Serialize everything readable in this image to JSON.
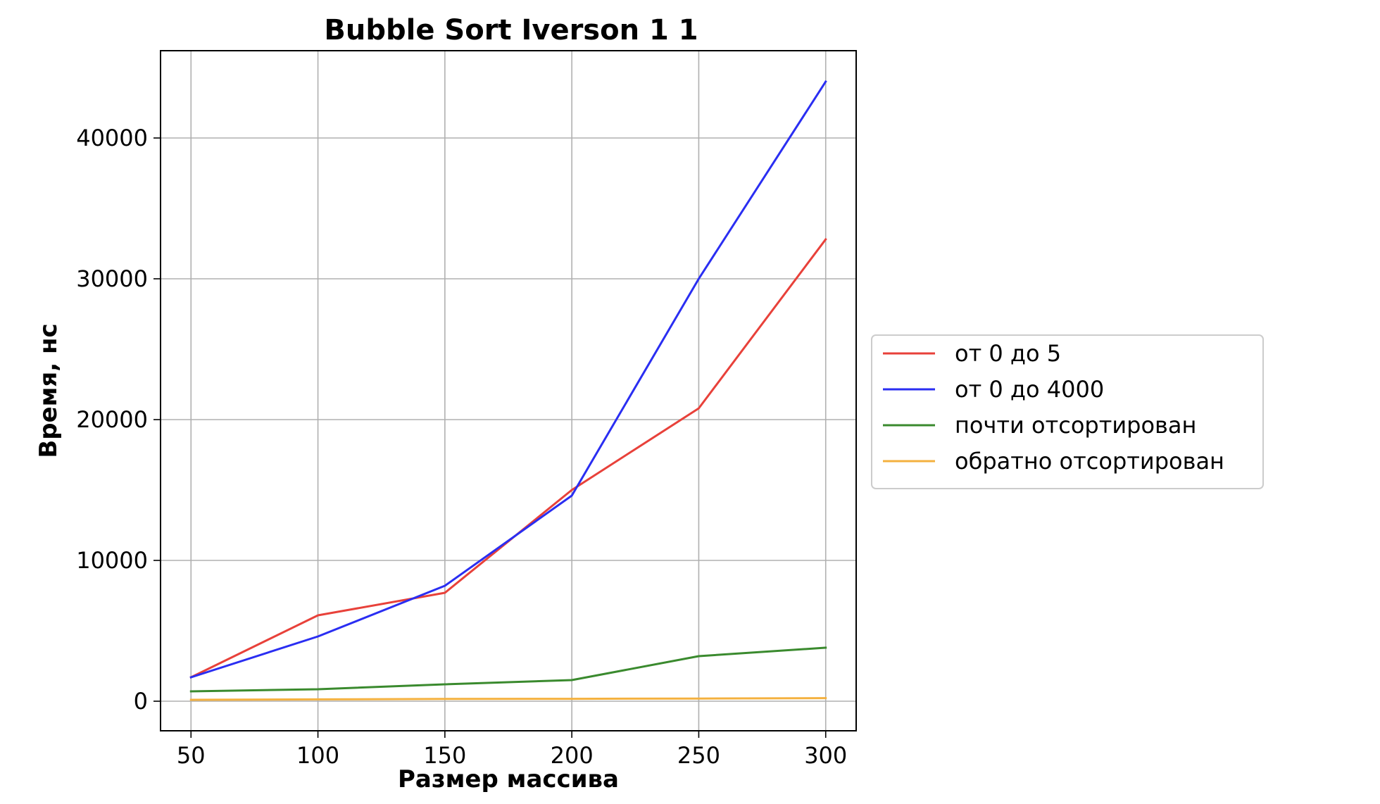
{
  "chart_data": {
    "type": "line",
    "title": "Bubble Sort Iverson 1 1",
    "xlabel": "Размер массива",
    "ylabel": "Время, нс",
    "x": [
      50,
      100,
      150,
      200,
      250,
      300
    ],
    "xlim": [
      38,
      312
    ],
    "ylim": [
      -2100,
      46200
    ],
    "xticks": [
      50,
      100,
      150,
      200,
      250,
      300
    ],
    "xtick_labels": [
      "50",
      "100",
      "150",
      "200",
      "250",
      "300"
    ],
    "yticks": [
      0,
      10000,
      20000,
      30000,
      40000
    ],
    "ytick_labels": [
      "0",
      "10000",
      "20000",
      "30000",
      "40000"
    ],
    "grid": true,
    "legend_position": "outside-right",
    "series": [
      {
        "name": "от 0 до 5",
        "color": "#e8413a",
        "values": [
          1700,
          6100,
          7700,
          15000,
          20800,
          32800
        ]
      },
      {
        "name": "от 0 до 4000",
        "color": "#2a2ef2",
        "values": [
          1700,
          4600,
          8200,
          14600,
          30000,
          44000
        ]
      },
      {
        "name": "почти отсортирован",
        "color": "#3a8a2e",
        "values": [
          700,
          850,
          1200,
          1500,
          3200,
          3800
        ]
      },
      {
        "name": "обратно отсортирован",
        "color": "#f4b13f",
        "values": [
          100,
          130,
          160,
          170,
          190,
          220
        ]
      }
    ]
  }
}
